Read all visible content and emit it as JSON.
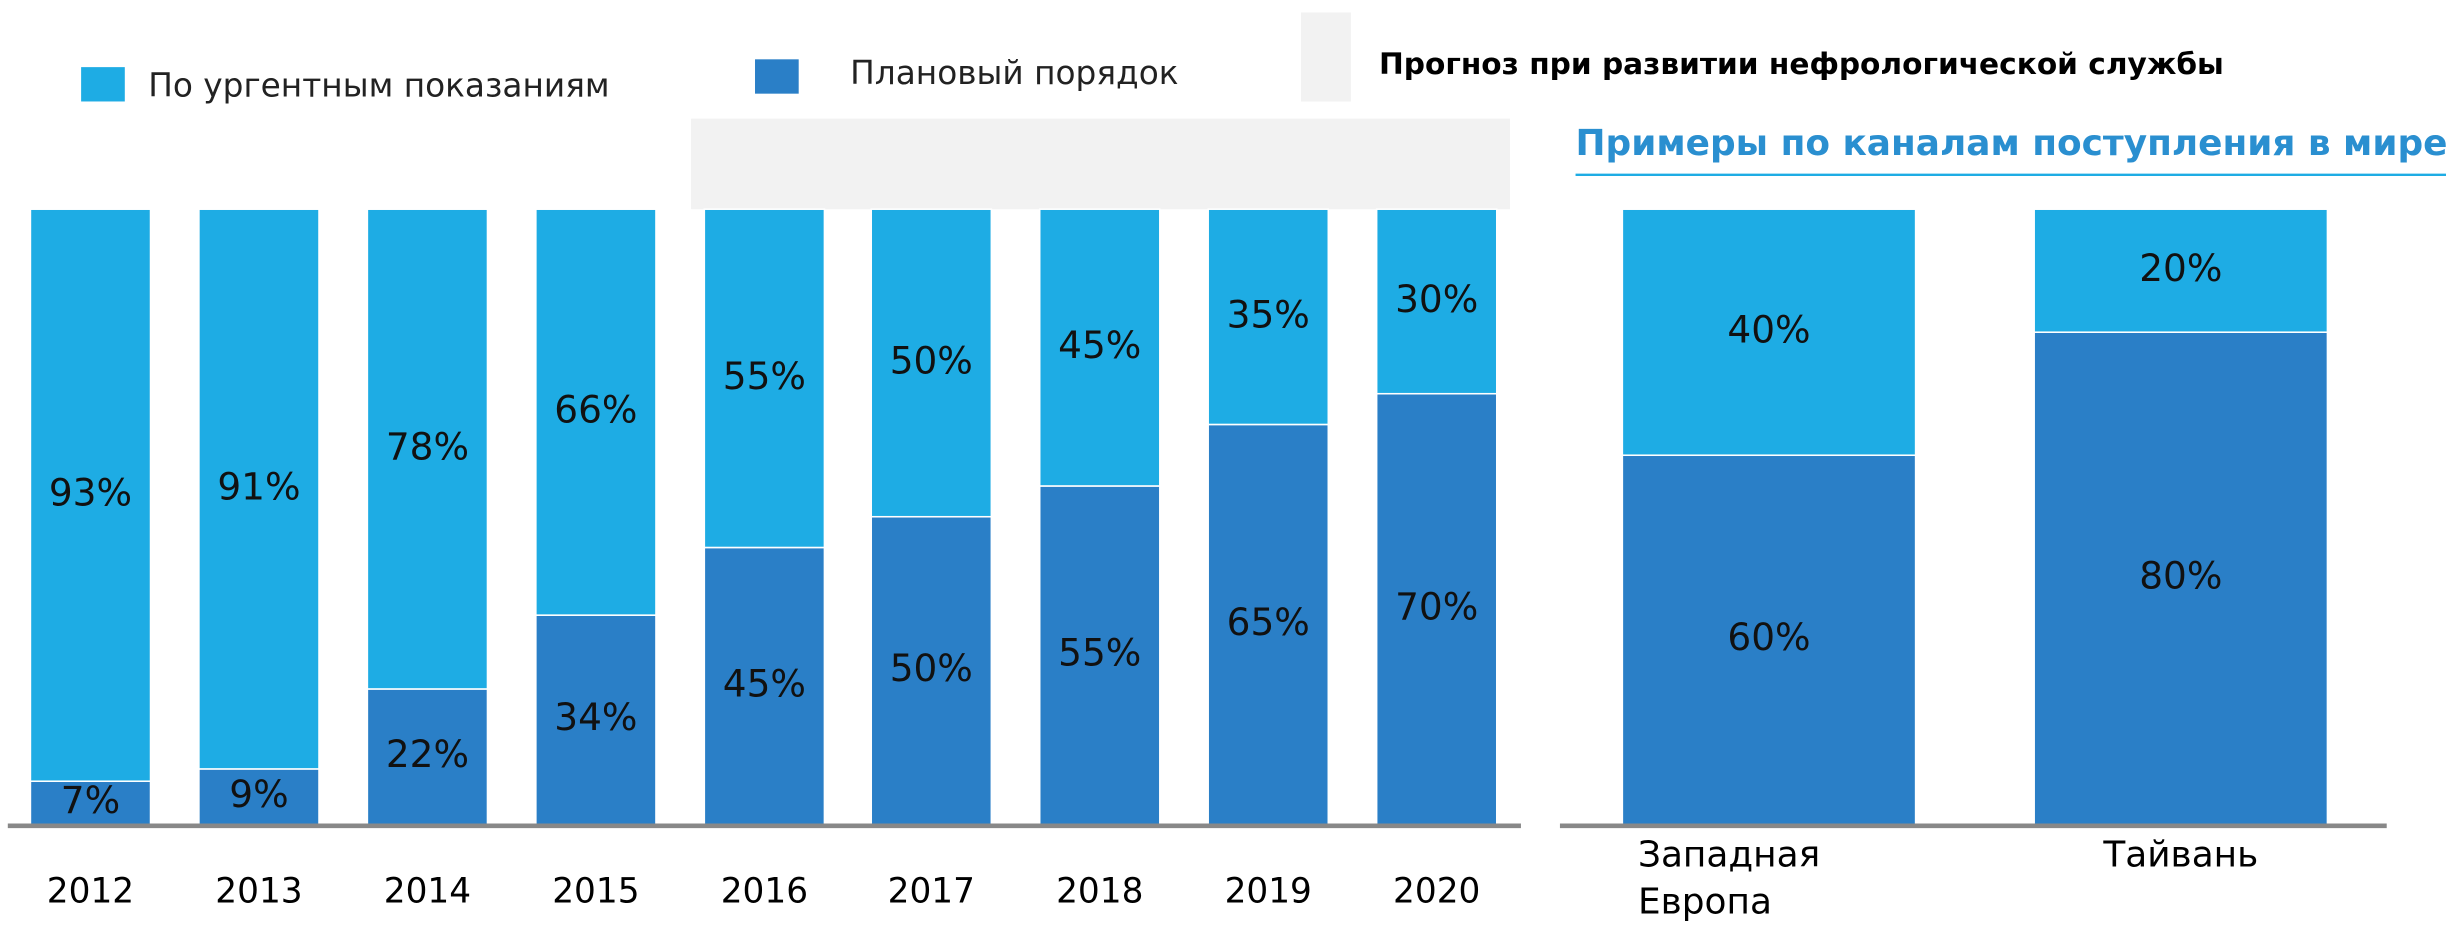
{
  "chart_data": [
    {
      "type": "bar",
      "stacked": true,
      "annotations": [
        "Прогноз при развитии нефрологической службы"
      ],
      "categories": [
        "2012",
        "2013",
        "2014",
        "2015",
        "2016",
        "2017",
        "2018",
        "2019",
        "2020"
      ],
      "ylim": [
        0,
        100
      ],
      "series": [
        {
          "name": "Плановый порядок",
          "color": "#2a7fc7",
          "values": [
            7,
            9,
            22,
            34,
            45,
            50,
            55,
            65,
            70
          ],
          "value_labels": [
            "7%",
            "9%",
            "22%",
            "34%",
            "45%",
            "50%",
            "55%",
            "65%",
            "70%"
          ]
        },
        {
          "name": "По ургентным показаниям",
          "color": "#1eace4",
          "values": [
            93,
            91,
            78,
            66,
            55,
            50,
            45,
            35,
            30
          ],
          "value_labels": [
            "93%",
            "91%",
            "78%",
            "66%",
            "55%",
            "50%",
            "45%",
            "35%",
            "30%"
          ]
        }
      ]
    },
    {
      "type": "bar",
      "stacked": true,
      "title": "Примеры по каналам поступления в мире",
      "categories": [
        "Западная Европа",
        "Тайвань"
      ],
      "ylim": [
        0,
        100
      ],
      "series": [
        {
          "color": "#2a7fc7",
          "values": [
            60,
            80
          ],
          "value_labels": [
            "60%",
            "80%"
          ]
        },
        {
          "color": "#1eace4",
          "values": [
            40,
            20
          ],
          "value_labels": [
            "40%",
            "20%"
          ]
        }
      ]
    }
  ]
}
